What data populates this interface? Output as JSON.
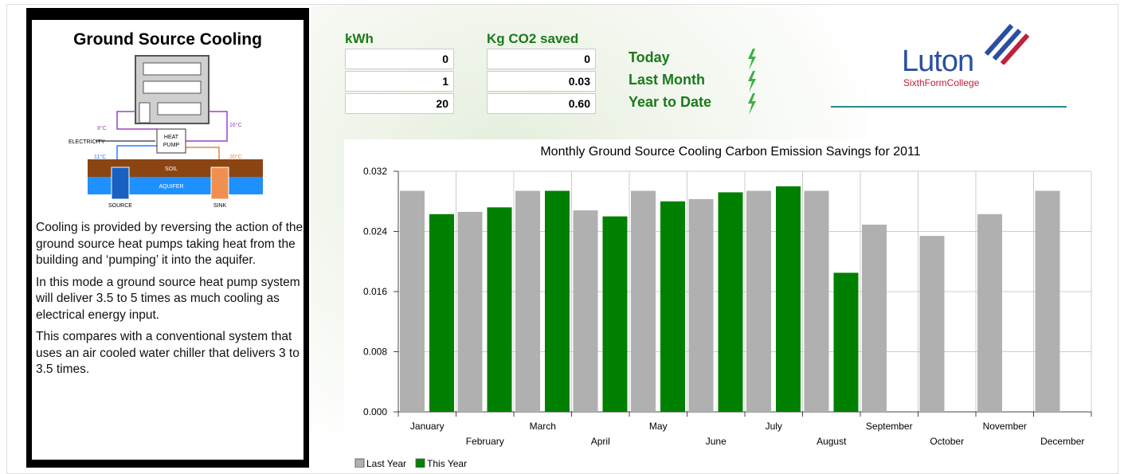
{
  "info_panel": {
    "title": "Ground Source Cooling",
    "diagram": {
      "temp_in": "8°C",
      "temp_out": "16°C",
      "electricity": "ELECTRICITY",
      "heat_pump": [
        "HEAT",
        "PUMP"
      ],
      "temp_source": "11°C",
      "temp_sink": "20°C",
      "soil": "SOIL",
      "aquifer": "AQUIFER",
      "source": "SOURCE",
      "sink": "SINK"
    },
    "paragraphs": [
      "Cooling is provided by reversing the action of the ground source heat pumps taking heat from the building and ‘pumping’ it into the aquifer.",
      "In this mode a ground source heat pump system will deliver 3.5 to 5 times as much cooling as electrical energy input.",
      "This compares with a conventional system that uses an air cooled water chiller that delivers 3 to 3.5 times."
    ]
  },
  "stats": {
    "headers": [
      "kWh",
      "Kg CO2 saved"
    ],
    "rows": [
      {
        "label": "Today",
        "kwh": "0",
        "co2": "0"
      },
      {
        "label": "Last Month",
        "kwh": "1",
        "co2": "0.03"
      },
      {
        "label": "Year to Date",
        "kwh": "20",
        "co2": "0.60"
      }
    ]
  },
  "logo": {
    "name": "Luton",
    "subtitle": "SixthFormCollege"
  },
  "chart_data": {
    "type": "bar",
    "title": "Monthly Ground Source Cooling Carbon Emission Savings for 2011",
    "categories": [
      "January",
      "February",
      "March",
      "April",
      "May",
      "June",
      "July",
      "August",
      "September",
      "October",
      "November",
      "December"
    ],
    "series": [
      {
        "name": "Last Year",
        "color": "#b0b0b0",
        "values": [
          0.0294,
          0.0266,
          0.0294,
          0.0268,
          0.0294,
          0.0283,
          0.0294,
          0.0294,
          0.0249,
          0.0234,
          0.0263,
          0.0294
        ]
      },
      {
        "name": "This Year",
        "color": "#008000",
        "values": [
          0.0263,
          0.0272,
          0.0294,
          0.026,
          0.028,
          0.0292,
          0.03,
          0.0185,
          null,
          null,
          null,
          null
        ]
      }
    ],
    "ylim": [
      0,
      0.032
    ],
    "yticks": [
      {
        "value": 0,
        "label": "0.000"
      },
      {
        "value": 0.008,
        "label": "0.008"
      },
      {
        "value": 0.016,
        "label": "0.016"
      },
      {
        "value": 0.024,
        "label": "0.024"
      },
      {
        "value": 0.032,
        "label": "0.032"
      }
    ],
    "grid": true,
    "legend": "bottom"
  }
}
